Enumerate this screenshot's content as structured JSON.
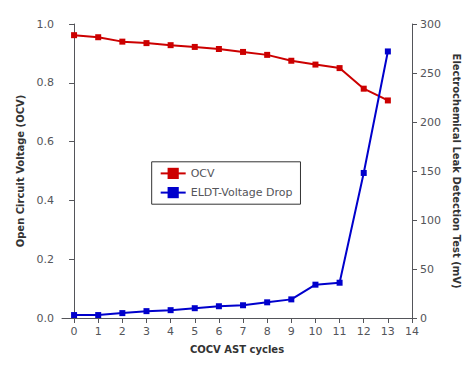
{
  "chart_data": {
    "type": "line",
    "xlabel": "COCV AST cycles",
    "ylabel": "Open Circuit Voltage (OCV)",
    "y2label": "Electrochemical Leak Detection Test (mV)",
    "x": [
      0,
      1,
      2,
      3,
      4,
      5,
      6,
      7,
      8,
      9,
      10,
      11,
      12,
      13
    ],
    "series": [
      {
        "name": "OCV",
        "color": "#cc0000",
        "marker": "square",
        "axis": "y",
        "values": [
          0.962,
          0.955,
          0.94,
          0.935,
          0.928,
          0.922,
          0.915,
          0.905,
          0.895,
          0.875,
          0.862,
          0.85,
          0.78,
          0.74
        ]
      },
      {
        "name": "ELDT-Voltage Drop",
        "color": "#0000cc",
        "marker": "square",
        "axis": "y2",
        "values": [
          3,
          3,
          5,
          7,
          8,
          10,
          12,
          13,
          16,
          19,
          34,
          36,
          148,
          272
        ]
      }
    ],
    "xlim": [
      -0.5,
      14
    ],
    "xticks": [
      0,
      1,
      2,
      3,
      4,
      5,
      6,
      7,
      8,
      9,
      10,
      11,
      12,
      13,
      14
    ],
    "ylim": [
      0.0,
      1.0
    ],
    "yticks": [
      {
        "value": 0,
        "label": "0.0"
      },
      0.2,
      0.4,
      0.6,
      0.8,
      {
        "value": 1,
        "label": "1.0"
      }
    ],
    "y2lim": [
      0,
      300
    ],
    "y2ticks": [
      0,
      50,
      100,
      150,
      200,
      250,
      300
    ],
    "legend": "center",
    "grid": false
  }
}
